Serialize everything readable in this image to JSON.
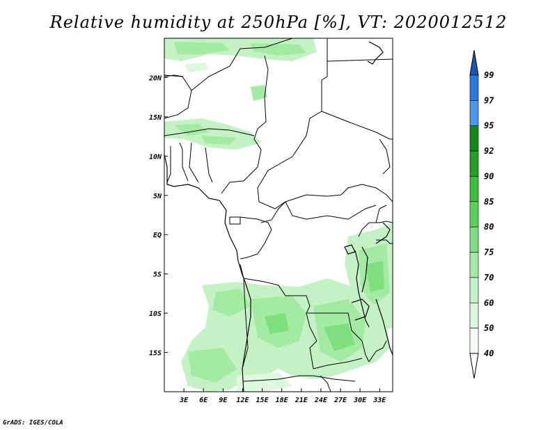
{
  "title": "Relative humidity at 250hPa [%], VT: 2020012512",
  "credit": "GrADS: IGES/COLA",
  "map": {
    "lon_range": [
      0,
      35
    ],
    "lat_range": [
      -20,
      25
    ],
    "lat_ticks": [
      {
        "value": 20,
        "label": "20N"
      },
      {
        "value": 15,
        "label": "15N"
      },
      {
        "value": 10,
        "label": "10N"
      },
      {
        "value": 5,
        "label": "5N"
      },
      {
        "value": 0,
        "label": "EQ"
      },
      {
        "value": -5,
        "label": "5S"
      },
      {
        "value": -10,
        "label": "10S"
      },
      {
        "value": -15,
        "label": "15S"
      }
    ],
    "lon_ticks": [
      {
        "value": 3,
        "label": "3E"
      },
      {
        "value": 6,
        "label": "6E"
      },
      {
        "value": 9,
        "label": "9E"
      },
      {
        "value": 12,
        "label": "12E"
      },
      {
        "value": 15,
        "label": "15E"
      },
      {
        "value": 18,
        "label": "18E"
      },
      {
        "value": 21,
        "label": "21E"
      },
      {
        "value": 24,
        "label": "24E"
      },
      {
        "value": 27,
        "label": "27E"
      },
      {
        "value": 30,
        "label": "30E"
      },
      {
        "value": 33,
        "label": "33E"
      }
    ]
  },
  "colorbar": {
    "levels": [
      {
        "label": "99",
        "color": "#1e5fc8"
      },
      {
        "label": "97",
        "color": "#2c78dc"
      },
      {
        "label": "95",
        "color": "#4a98ec"
      },
      {
        "label": "92",
        "color": "#0f8a14"
      },
      {
        "label": "90",
        "color": "#25a025"
      },
      {
        "label": "85",
        "color": "#3dbf3d"
      },
      {
        "label": "80",
        "color": "#57d257"
      },
      {
        "label": "75",
        "color": "#7ee07e"
      },
      {
        "label": "70",
        "color": "#a3eba3"
      },
      {
        "label": "60",
        "color": "#c4f2c4"
      },
      {
        "label": "50",
        "color": "#def8de"
      },
      {
        "label": "40",
        "color": "#f2fdf2"
      }
    ],
    "top_cap_color": "#1a56b8",
    "bottom_cap_color": "#ffffff"
  }
}
